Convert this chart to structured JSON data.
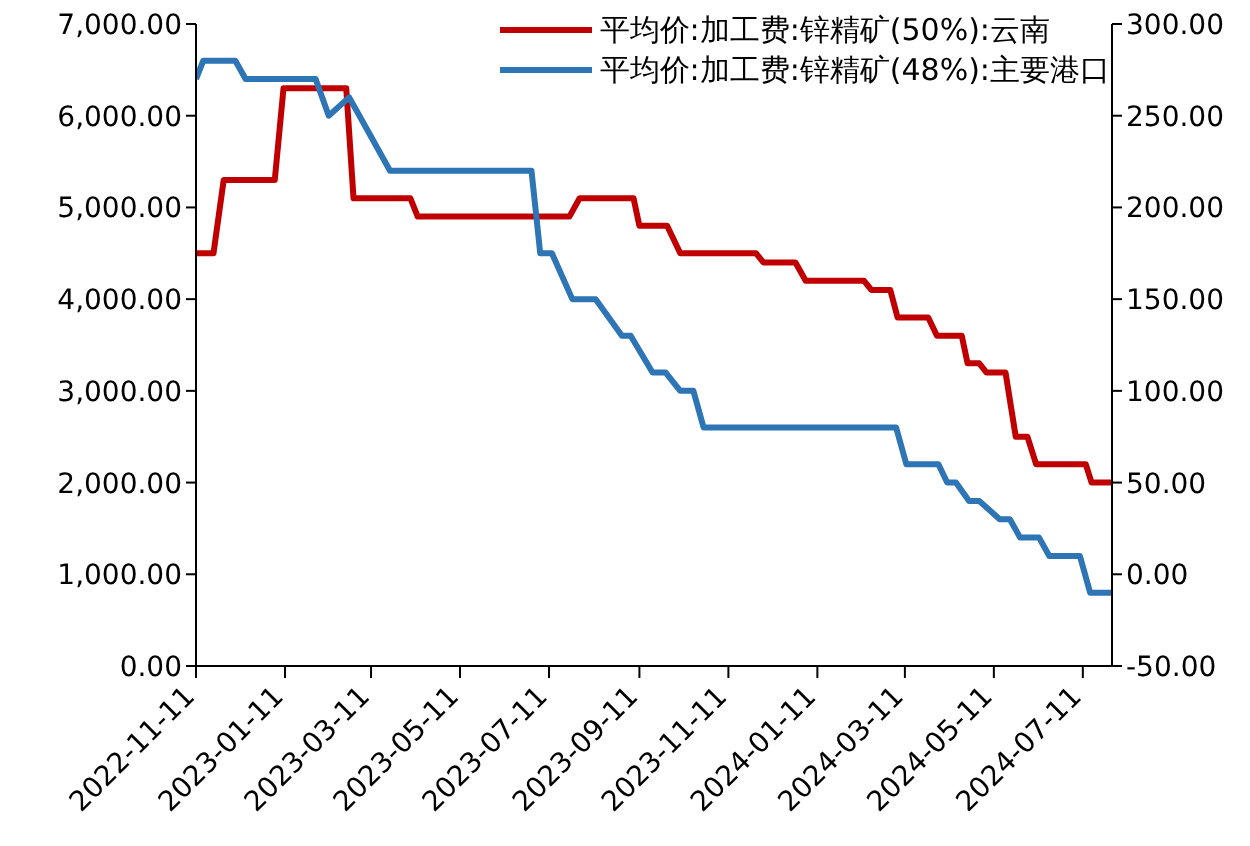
{
  "chart_data": {
    "type": "line",
    "legend": "top right",
    "grid": false,
    "marker": "none",
    "line_style": "solid",
    "xlim": [
      "2022-11-11",
      "2024-07-31"
    ],
    "xticks": [
      "2022-11-11",
      "2023-01-11",
      "2023-03-11",
      "2023-05-11",
      "2023-07-11",
      "2023-09-11",
      "2023-11-11",
      "2024-01-11",
      "2024-03-11",
      "2024-05-11",
      "2024-07-11"
    ],
    "ylim": [
      0,
      7000
    ],
    "yticks": [
      {
        "value": 0,
        "label": "0.00"
      },
      {
        "value": 1000,
        "label": "1,000.00"
      },
      {
        "value": 2000,
        "label": "2,000.00"
      },
      {
        "value": 3000,
        "label": "3,000.00"
      },
      {
        "value": 4000,
        "label": "4,000.00"
      },
      {
        "value": 5000,
        "label": "5,000.00"
      },
      {
        "value": 6000,
        "label": "6,000.00"
      },
      {
        "value": 7000,
        "label": "7,000.00"
      }
    ],
    "y2lim": [
      -50,
      300
    ],
    "y2ticks": [
      {
        "value": -50,
        "label": "-50.00"
      },
      {
        "value": 0,
        "label": "0.00"
      },
      {
        "value": 50,
        "label": "50.00"
      },
      {
        "value": 100,
        "label": "100.00"
      },
      {
        "value": 150,
        "label": "150.00"
      },
      {
        "value": 200,
        "label": "200.00"
      },
      {
        "value": 250,
        "label": "250.00"
      },
      {
        "value": 300,
        "label": "300.00"
      }
    ],
    "series": [
      {
        "name": "平均价:加工费:锌精矿(50%):云南",
        "color": "#c00000",
        "x": [
          "2022-11-11",
          "2022-11-23",
          "2022-11-30",
          "2023-01-04",
          "2023-01-10",
          "2023-02-22",
          "2023-02-27",
          "2023-04-07",
          "2023-04-12",
          "2023-07-25",
          "2023-08-01",
          "2023-09-07",
          "2023-09-11",
          "2023-09-30",
          "2023-10-09",
          "2023-11-30",
          "2023-12-05",
          "2023-12-27",
          "2024-01-03",
          "2024-02-12",
          "2024-02-17",
          "2024-03-01",
          "2024-03-06",
          "2024-03-27",
          "2024-04-02",
          "2024-04-19",
          "2024-04-23",
          "2024-05-01",
          "2024-05-06",
          "2024-05-19",
          "2024-05-26",
          "2024-06-03",
          "2024-06-09",
          "2024-07-13",
          "2024-07-17",
          "2024-07-31"
        ],
        "values": [
          4500,
          4500,
          5300,
          5300,
          6300,
          6300,
          5100,
          5100,
          4900,
          4900,
          5100,
          5100,
          4800,
          4800,
          4500,
          4500,
          4400,
          4400,
          4200,
          4200,
          4100,
          4100,
          3800,
          3800,
          3600,
          3600,
          3300,
          3300,
          3200,
          3200,
          2500,
          2500,
          2200,
          2200,
          2000,
          2000
        ]
      },
      {
        "name": "平均价:加工费:锌精矿(48%):主要港口",
        "color": "#2e75b6",
        "axis": "y2",
        "x": [
          "2022-11-11",
          "2022-11-16",
          "2022-12-08",
          "2022-12-15",
          "2023-02-01",
          "2023-02-10",
          "2023-02-24",
          "2023-03-10",
          "2023-03-24",
          "2023-06-29",
          "2023-07-05",
          "2023-07-13",
          "2023-07-27",
          "2023-08-12",
          "2023-08-30",
          "2023-09-05",
          "2023-09-20",
          "2023-09-29",
          "2023-10-09",
          "2023-10-18",
          "2023-10-25",
          "2024-03-05",
          "2024-03-12",
          "2024-04-03",
          "2024-04-09",
          "2024-04-15",
          "2024-04-24",
          "2024-05-01",
          "2024-05-15",
          "2024-05-22",
          "2024-05-29",
          "2024-06-11",
          "2024-06-18",
          "2024-07-09",
          "2024-07-16",
          "2024-07-31"
        ],
        "values": [
          270,
          280,
          280,
          270,
          270,
          250,
          260,
          240,
          220,
          220,
          175,
          175,
          150,
          150,
          130,
          130,
          110,
          110,
          100,
          100,
          80,
          80,
          60,
          60,
          50,
          50,
          40,
          40,
          30,
          30,
          20,
          20,
          10,
          10,
          -10,
          -10
        ]
      }
    ]
  }
}
